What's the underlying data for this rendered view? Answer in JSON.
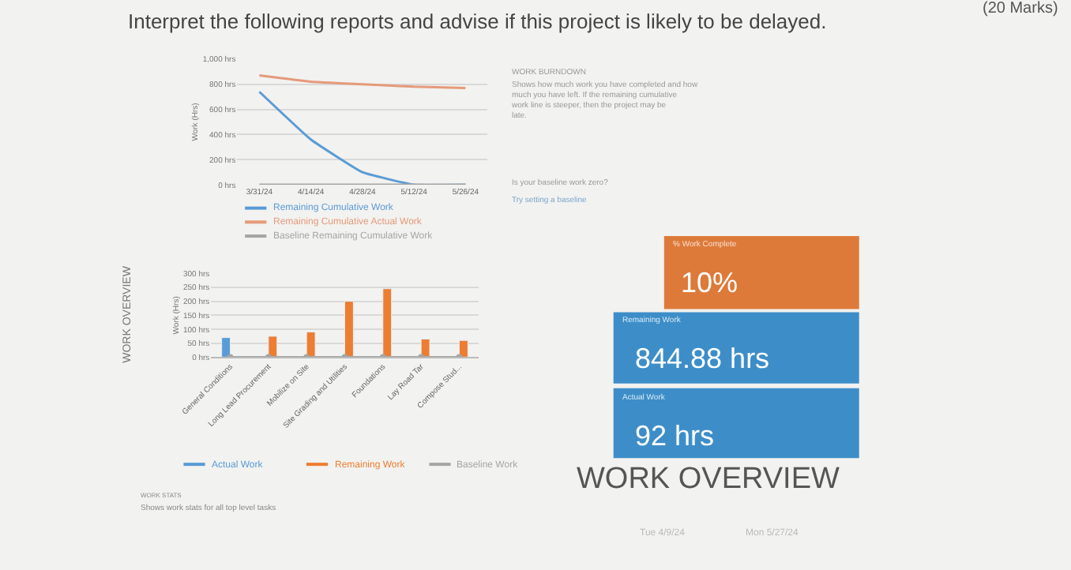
{
  "chart_data": [
    {
      "type": "line",
      "ylabel": "Work (Hrs)",
      "x": [
        "2024-03-31",
        "2024-04-14",
        "2024-04-28",
        "2024-05-12",
        "2024-05-26"
      ],
      "series": [
        {
          "name": "Remaining Cumulative Work",
          "color": "#5b9bd5",
          "values": [
            740,
            360,
            100,
            0,
            0
          ]
        },
        {
          "name": "Remaining Cumulative Actual Work",
          "color": "#e59a7a",
          "values": [
            870,
            820,
            800,
            780,
            770
          ]
        },
        {
          "name": "Baseline Remaining Cumulative Work",
          "color": "#a5a5a5",
          "values": [
            0,
            0,
            0,
            0,
            0
          ]
        }
      ],
      "xlim": [
        "2024-03-25",
        "2024-06-01"
      ],
      "xticks": [
        {
          "value": "2024-03-31",
          "label": "3/31/24"
        },
        {
          "value": "2024-04-14",
          "label": "4/14/24"
        },
        {
          "value": "2024-04-28",
          "label": "4/28/24"
        },
        {
          "value": "2024-05-12",
          "label": "5/12/24"
        },
        {
          "value": "2024-05-26",
          "label": "5/26/24"
        }
      ],
      "ylim": [
        0,
        1000
      ],
      "yticks": [
        {
          "value": 0,
          "label": "0 hrs"
        },
        {
          "value": 200,
          "label": "200 hrs"
        },
        {
          "value": 400,
          "label": "400 hrs"
        },
        {
          "value": 600,
          "label": "600 hrs"
        },
        {
          "value": 800,
          "label": "800 hrs"
        },
        {
          "value": 1000,
          "label": "1,000 hrs"
        }
      ],
      "grid": "y",
      "legend": "bottom",
      "annotations": [
        "WORK BURNDOWN",
        "Shows how much work you have completed and how much you have left. If the remaining cumulative work line is steeper, then the project may be late.",
        "Is your baseline work zero?",
        "Try setting a baseline"
      ]
    },
    {
      "type": "bar",
      "title": "WORK STATS",
      "subtitle": "Shows work stats for all top level tasks",
      "ylabel": "Work (Hrs)",
      "categories": [
        "General Conditions",
        "Long Lead Procurement",
        "Mobilize on Site",
        "Site Grading and Utilities",
        "Foundations",
        "Lay Road Tar",
        "Compose Stud..."
      ],
      "series": [
        {
          "name": "Actual Work",
          "color": "#5b9bd5",
          "values": [
            70,
            null,
            null,
            null,
            null,
            null,
            null
          ]
        },
        {
          "name": "Remaining Work",
          "color": "#ed7d31",
          "values": [
            null,
            75,
            90,
            200,
            245,
            65,
            60
          ]
        },
        {
          "name": "Baseline Work",
          "type": "line",
          "color": "#a5a5a5",
          "values": [
            0,
            0,
            0,
            0,
            0,
            0,
            0
          ]
        }
      ],
      "ylim": [
        0,
        300
      ],
      "yticks": [
        {
          "value": 0,
          "label": "0 hrs"
        },
        {
          "value": 50,
          "label": "50 hrs"
        },
        {
          "value": 100,
          "label": "100 hrs"
        },
        {
          "value": 150,
          "label": "150 hrs"
        },
        {
          "value": 200,
          "label": "200 hrs"
        },
        {
          "value": 250,
          "label": "250 hrs"
        },
        {
          "value": 300,
          "label": "300 hrs"
        }
      ],
      "grid": "y",
      "legend": "bottom",
      "marker": "circle"
    },
    {
      "type": "other",
      "title": "WORK OVERVIEW",
      "colors": [
        "#dd7a3a",
        "#3d8ec8",
        "#3d8ec8"
      ],
      "annotations": [
        "Interpret the following reports and advise if this project is likely to be delayed.",
        "(20 Marks)",
        "WORK OVERVIEW",
        "% Work Complete",
        "10%",
        "Remaining Work",
        "844.88 hrs",
        "Actual Work",
        "92 hrs",
        "Tue 4/9/24",
        "Mon 5/27/24"
      ]
    }
  ]
}
